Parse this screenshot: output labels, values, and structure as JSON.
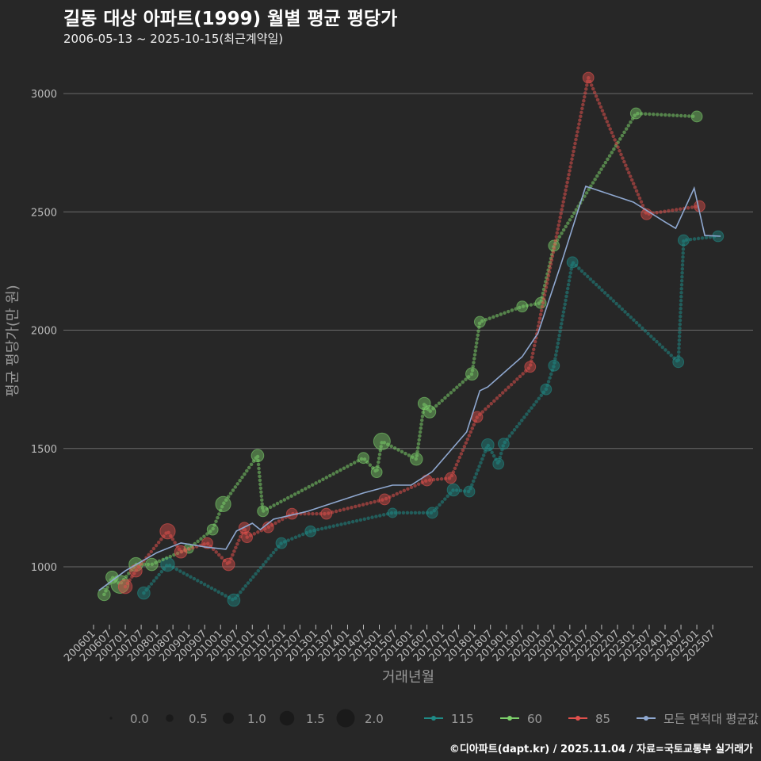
{
  "title": "길동 대상 아파트(1999) 월별 평균 평당가",
  "subtitle": "2006-05-13 ~ 2025-10-15(최근계약일)",
  "footer": "©디아파트(dapt.kr) / 2025.11.04 / 자료=국토교통부 실거래가",
  "chart_data": {
    "type": "scatter",
    "xlabel": "거래년월",
    "ylabel": "평균 평당가(만 원)",
    "ylim": [
      780,
      3120
    ],
    "yticks": [
      1000,
      1500,
      2000,
      2500,
      3000
    ],
    "xticks": [
      "200601",
      "200607",
      "200701",
      "200707",
      "200801",
      "200807",
      "200901",
      "200907",
      "201001",
      "201007",
      "201101",
      "201107",
      "201201",
      "201207",
      "201301",
      "201307",
      "201401",
      "201407",
      "201501",
      "201507",
      "201601",
      "201607",
      "201701",
      "201707",
      "201801",
      "201807",
      "201901",
      "201907",
      "202001",
      "202007",
      "202101",
      "202107",
      "202201",
      "202207",
      "202301",
      "202307",
      "202401",
      "202407",
      "202501",
      "202507"
    ],
    "grid": true,
    "legend_position": "bottom",
    "size_legend": {
      "values": [
        0.0,
        0.5,
        1.0,
        1.5,
        2.0
      ],
      "labels": [
        "0.0",
        "0.5",
        "1.0",
        "1.5",
        "2.0"
      ]
    },
    "series": [
      {
        "name": "115",
        "color": "#1f8a86",
        "points": [
          [
            "200708",
            889,
            1.4
          ],
          [
            "200805",
            1010,
            1.6
          ],
          [
            "201006",
            859,
            1.4
          ],
          [
            "201112",
            1100,
            1.2
          ],
          [
            "201211",
            1150,
            1.2
          ],
          [
            "201506",
            1228,
            1.0
          ],
          [
            "201609",
            1228,
            1.2
          ],
          [
            "201705",
            1325,
            1.4
          ],
          [
            "201711",
            1318,
            1.2
          ],
          [
            "201806",
            1515,
            1.4
          ],
          [
            "201810",
            1435,
            1.2
          ],
          [
            "201812",
            1520,
            1.2
          ],
          [
            "202004",
            1750,
            1.2
          ],
          [
            "202007",
            1850,
            1.2
          ],
          [
            "202102",
            2287,
            1.2
          ],
          [
            "202406",
            1865,
            1.2
          ],
          [
            "202408",
            2380,
            1.2
          ],
          [
            "202509",
            2397,
            1.2
          ]
        ]
      },
      {
        "name": "60",
        "color": "#7ccf6a",
        "points": [
          [
            "200605",
            883,
            1.4
          ],
          [
            "200608",
            956,
            1.4
          ],
          [
            "200611",
            926,
            2.2
          ],
          [
            "200705",
            1010,
            1.6
          ],
          [
            "200711",
            1010,
            1.4
          ],
          [
            "200901",
            1077,
            1.0
          ],
          [
            "200910",
            1157,
            1.2
          ],
          [
            "201002",
            1265,
            1.8
          ],
          [
            "201103",
            1470,
            1.4
          ],
          [
            "201105",
            1235,
            1.2
          ],
          [
            "201407",
            1460,
            1.2
          ],
          [
            "201412",
            1400,
            1.2
          ],
          [
            "201502",
            1530,
            2.0
          ],
          [
            "201603",
            1455,
            1.4
          ],
          [
            "201606",
            1690,
            1.4
          ],
          [
            "201608",
            1655,
            1.4
          ],
          [
            "201712",
            1815,
            1.4
          ],
          [
            "201803",
            2035,
            1.2
          ],
          [
            "201907",
            2100,
            1.2
          ],
          [
            "202002",
            2115,
            1.2
          ],
          [
            "202007",
            2357,
            1.2
          ],
          [
            "202302",
            2916,
            1.2
          ],
          [
            "202501",
            2903,
            1.2
          ]
        ]
      },
      {
        "name": "85",
        "color": "#e0504c",
        "points": [
          [
            "200701",
            916,
            1.6
          ],
          [
            "200705",
            983,
            1.4
          ],
          [
            "200805",
            1150,
            1.8
          ],
          [
            "200810",
            1063,
            1.4
          ],
          [
            "200908",
            1100,
            1.2
          ],
          [
            "201004",
            1010,
            1.4
          ],
          [
            "201010",
            1165,
            1.2
          ],
          [
            "201011",
            1125,
            1.2
          ],
          [
            "201107",
            1167,
            1.2
          ],
          [
            "201204",
            1224,
            1.2
          ],
          [
            "201305",
            1224,
            1.2
          ],
          [
            "201503",
            1285,
            1.2
          ],
          [
            "201607",
            1365,
            1.2
          ],
          [
            "201704",
            1375,
            1.2
          ],
          [
            "201802",
            1633,
            1.2
          ],
          [
            "201910",
            1845,
            1.2
          ],
          [
            "202108",
            3067,
            1.2
          ],
          [
            "202306",
            2490,
            1.2
          ],
          [
            "202502",
            2524,
            1.2
          ]
        ]
      },
      {
        "name": "모든 면적대 평균값",
        "color": "#8fa8d0",
        "line": true,
        "points": [
          [
            "200603",
            900
          ],
          [
            "200701",
            983
          ],
          [
            "200801",
            1060
          ],
          [
            "200810",
            1101
          ],
          [
            "200907",
            1084
          ],
          [
            "201003",
            1074
          ],
          [
            "201007",
            1151
          ],
          [
            "201101",
            1184
          ],
          [
            "201104",
            1157
          ],
          [
            "201109",
            1201
          ],
          [
            "201210",
            1235
          ],
          [
            "201307",
            1268
          ],
          [
            "201407",
            1312
          ],
          [
            "201506",
            1345
          ],
          [
            "201601",
            1345
          ],
          [
            "201609",
            1402
          ],
          [
            "201710",
            1570
          ],
          [
            "201803",
            1744
          ],
          [
            "201806",
            1760
          ],
          [
            "201907",
            1888
          ],
          [
            "202001",
            1988
          ],
          [
            "202010",
            2290
          ],
          [
            "202107",
            2608
          ],
          [
            "202301",
            2541
          ],
          [
            "202401",
            2457
          ],
          [
            "202405",
            2430
          ],
          [
            "202412",
            2600
          ],
          [
            "202504",
            2400
          ],
          [
            "202510",
            2397
          ]
        ]
      }
    ]
  }
}
